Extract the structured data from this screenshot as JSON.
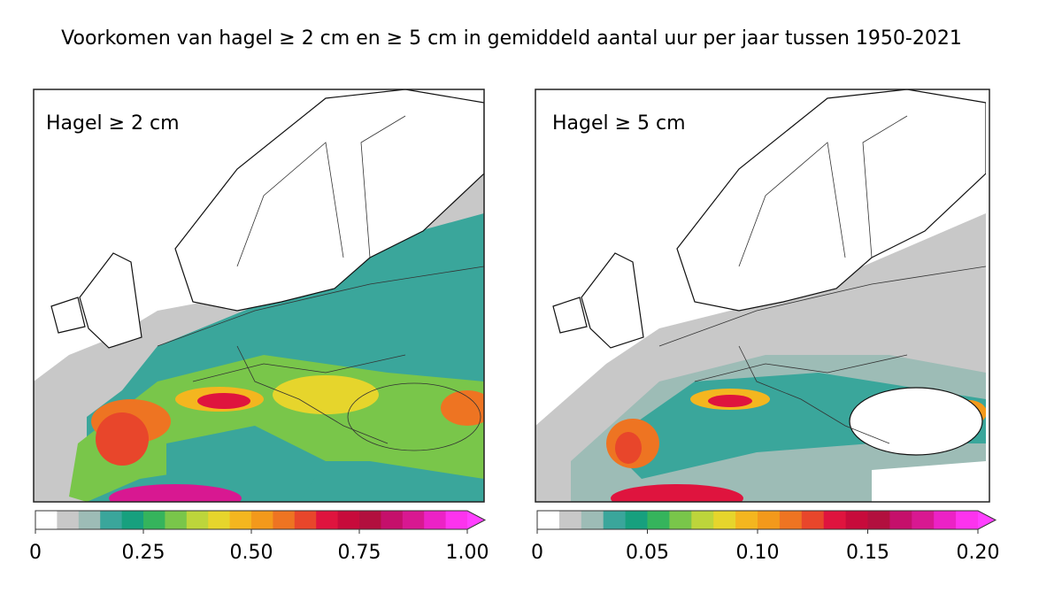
{
  "title": "Voorkomen van hagel ≥ 2 cm en ≥ 5 cm in gemiddeld aantal uur per jaar tussen 1950-2021",
  "panels": [
    {
      "label": "Hagel ≥ 2 cm",
      "colorbar": {
        "lim": [
          0,
          1
        ],
        "ticks": [
          0,
          0.25,
          {
            "value": 0.5,
            "label": "0.50"
          },
          0.75,
          {
            "value": 1,
            "label": "1.00"
          }
        ],
        "colors": [
          "#ffffff",
          "#c8c8c8",
          "#9dbcb6",
          "#3aa69b",
          "#17a07e",
          "#35b45c",
          "#79c64a",
          "#bdd53b",
          "#e6d52c",
          "#f4b61f",
          "#f3991b",
          "#ee7422",
          "#e8462b",
          "#df143e",
          "#c70b3b",
          "#b2103e",
          "#c5106b",
          "#d81891",
          "#ec22c6",
          "#fd33ee"
        ],
        "extend_color": "#ff40ff"
      }
    },
    {
      "label": "Hagel  ≥ 5 cm",
      "colorbar": {
        "lim": [
          0,
          0.2
        ],
        "ticks": [
          0,
          0.05,
          {
            "value": 0.1,
            "label": "0.10"
          },
          0.15,
          {
            "value": 0.2,
            "label": "0.20"
          }
        ],
        "colors": [
          "#ffffff",
          "#c8c8c8",
          "#9dbcb6",
          "#3aa69b",
          "#17a07e",
          "#35b45c",
          "#79c64a",
          "#bdd53b",
          "#e6d52c",
          "#f4b61f",
          "#f3991b",
          "#ee7422",
          "#e8462b",
          "#df143e",
          "#c70b3b",
          "#b2103e",
          "#c5106b",
          "#d81891",
          "#ec22c6",
          "#fd33ee"
        ],
        "extend_color": "#ff40ff"
      }
    }
  ]
}
